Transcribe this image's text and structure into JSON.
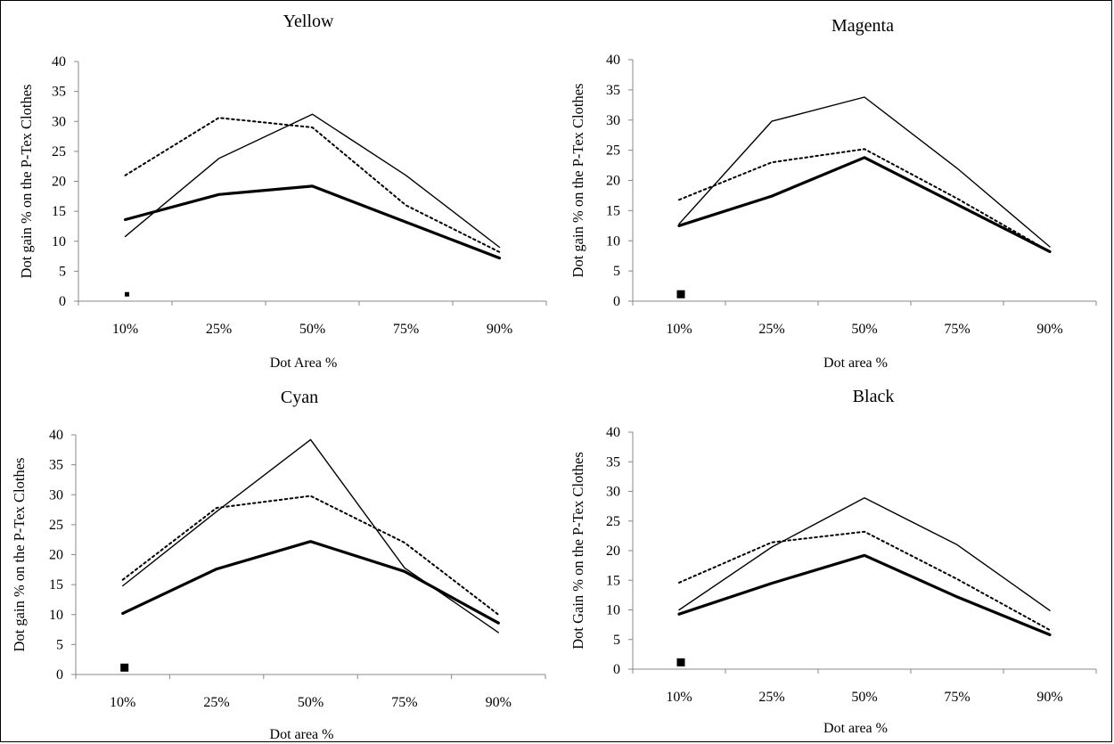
{
  "chart_data": [
    {
      "type": "line",
      "title": "Yellow",
      "xlabel": "Dot Area %",
      "ylabel": "Dot gain % on the P-Tex Clothes",
      "categories": [
        "10%",
        "25%",
        "50%",
        "75%",
        "90%"
      ],
      "ylim": [
        0,
        40
      ],
      "yticks": [
        "0",
        "5",
        "10",
        "15",
        "20",
        "25",
        "30",
        "35",
        "40"
      ],
      "grid": false,
      "legend": "none",
      "series": [
        {
          "style": "thin-solid",
          "values": [
            10.8,
            23.8,
            31.2,
            21.0,
            9.0
          ]
        },
        {
          "style": "dotted",
          "values": [
            21.0,
            30.6,
            29.0,
            16.0,
            8.2
          ]
        },
        {
          "style": "thick-solid",
          "values": [
            13.6,
            17.8,
            19.2,
            13.2,
            7.2
          ]
        }
      ]
    },
    {
      "type": "line",
      "title": "Magenta",
      "xlabel": "Dot area %",
      "ylabel": "Dot gain % on the P-Tex Clothes",
      "categories": [
        "10%",
        "25%",
        "50%",
        "75%",
        "90%"
      ],
      "ylim": [
        0,
        40
      ],
      "yticks": [
        "0",
        "5",
        "10",
        "15",
        "20",
        "25",
        "30",
        "35",
        "40"
      ],
      "grid": false,
      "legend": "none",
      "series": [
        {
          "style": "thin-solid",
          "values": [
            12.8,
            29.8,
            33.8,
            22.0,
            9.0
          ]
        },
        {
          "style": "dotted",
          "values": [
            16.8,
            23.0,
            25.2,
            17.0,
            8.2
          ]
        },
        {
          "style": "thick-solid",
          "values": [
            12.5,
            17.4,
            23.8,
            16.0,
            8.2
          ]
        }
      ]
    },
    {
      "type": "line",
      "title": "Cyan",
      "xlabel": "Dot area %",
      "ylabel": "Dot gain % on the P-Tex Clothes",
      "categories": [
        "10%",
        "25%",
        "50%",
        "75%",
        "90%"
      ],
      "ylim": [
        0,
        40
      ],
      "yticks": [
        "0",
        "5",
        "10",
        "15",
        "20",
        "25",
        "30",
        "35",
        "40"
      ],
      "grid": false,
      "legend": "none",
      "series": [
        {
          "style": "thin-solid",
          "values": [
            14.8,
            27.2,
            39.2,
            17.8,
            7.0
          ]
        },
        {
          "style": "dotted",
          "values": [
            15.8,
            27.8,
            29.8,
            22.0,
            10.0
          ]
        },
        {
          "style": "thick-solid",
          "values": [
            10.2,
            17.6,
            22.2,
            17.2,
            8.6
          ]
        }
      ]
    },
    {
      "type": "line",
      "title": "Black",
      "xlabel": "Dot area %",
      "ylabel": "Dot Gain % on the P-Tex Clothes",
      "categories": [
        "10%",
        "25%",
        "50%",
        "75%",
        "90%"
      ],
      "ylim": [
        0,
        40
      ],
      "yticks": [
        "0",
        "5",
        "10",
        "15",
        "20",
        "25",
        "30",
        "35",
        "40"
      ],
      "grid": false,
      "legend": "none",
      "series": [
        {
          "style": "thin-solid",
          "values": [
            10.0,
            20.6,
            28.9,
            21.0,
            9.9
          ]
        },
        {
          "style": "dotted",
          "values": [
            14.6,
            21.4,
            23.2,
            15.2,
            6.6
          ]
        },
        {
          "style": "thick-solid",
          "values": [
            9.3,
            14.5,
            19.2,
            12.2,
            5.8
          ]
        }
      ]
    }
  ]
}
